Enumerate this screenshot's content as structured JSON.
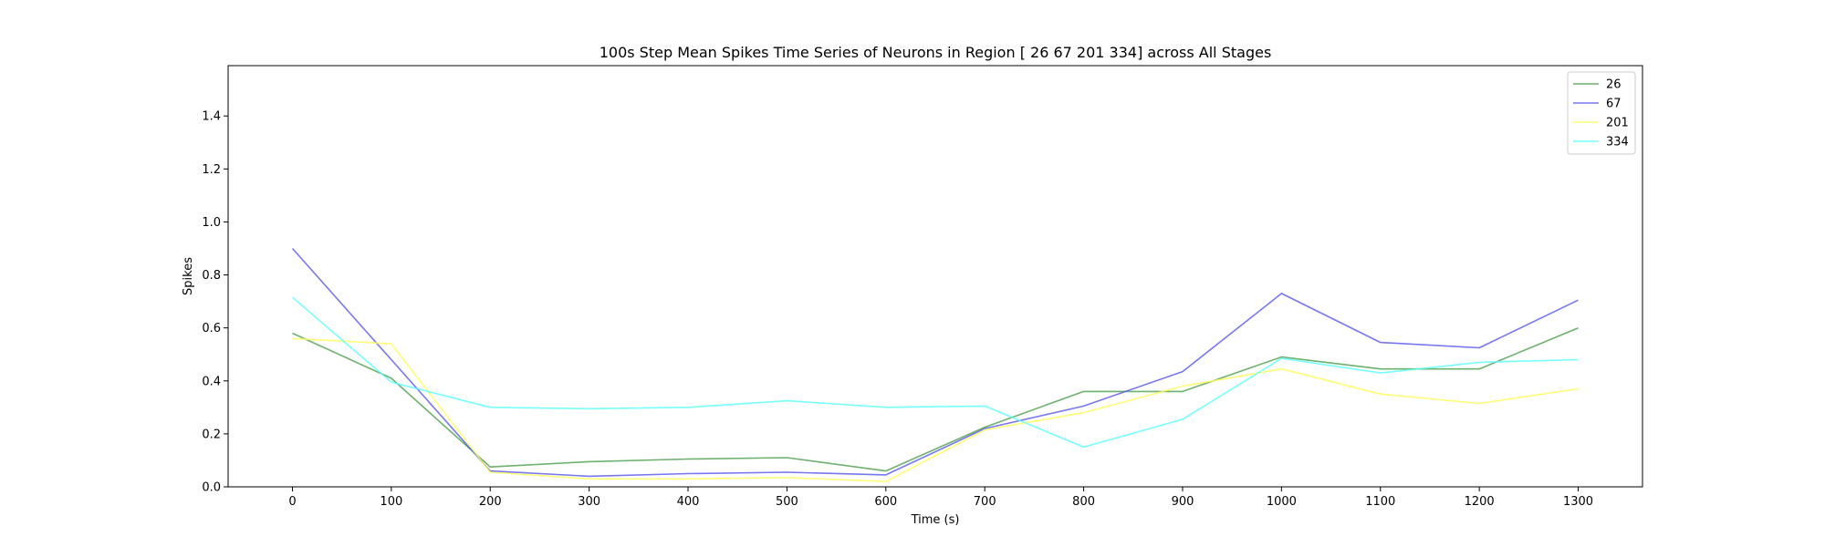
{
  "chart_data": {
    "type": "line",
    "title": "100s Step Mean Spikes Time Series of Neurons in Region [ 26  67 201 334] across All Stages",
    "xlabel": "Time (s)",
    "ylabel": "Spikes",
    "x": [
      0,
      100,
      200,
      300,
      400,
      500,
      600,
      700,
      800,
      900,
      1000,
      1100,
      1200,
      1300
    ],
    "xlim": [
      -65,
      1365
    ],
    "ylim": [
      0,
      1.59
    ],
    "xticks": [
      "0",
      "100",
      "200",
      "300",
      "400",
      "500",
      "600",
      "700",
      "800",
      "900",
      "1000",
      "1100",
      "1200",
      "1300"
    ],
    "yticks": [
      "0.0",
      "0.2",
      "0.4",
      "0.6",
      "0.8",
      "1.0",
      "1.2",
      "1.4"
    ],
    "grid": false,
    "legend_position": "top-right",
    "series": [
      {
        "name": "26",
        "color": "#4a9e4a",
        "values": [
          0.58,
          0.41,
          0.075,
          0.095,
          0.105,
          0.11,
          0.06,
          0.225,
          0.36,
          0.36,
          0.49,
          0.445,
          0.445,
          0.6
        ]
      },
      {
        "name": "67",
        "color": "#5555ee",
        "values": [
          0.9,
          0.48,
          0.06,
          0.04,
          0.05,
          0.055,
          0.045,
          0.22,
          0.305,
          0.435,
          0.73,
          0.545,
          0.525,
          0.705
        ]
      },
      {
        "name": "201",
        "color": "#ffff55",
        "values": [
          0.56,
          0.54,
          0.055,
          0.03,
          0.03,
          0.035,
          0.02,
          0.215,
          0.28,
          0.38,
          0.445,
          0.35,
          0.315,
          0.37
        ]
      },
      {
        "name": "334",
        "color": "#55ffff",
        "values": [
          0.715,
          0.395,
          0.3,
          0.295,
          0.3,
          0.325,
          0.3,
          0.305,
          0.15,
          0.255,
          0.485,
          0.43,
          0.47,
          0.48
        ]
      }
    ]
  }
}
